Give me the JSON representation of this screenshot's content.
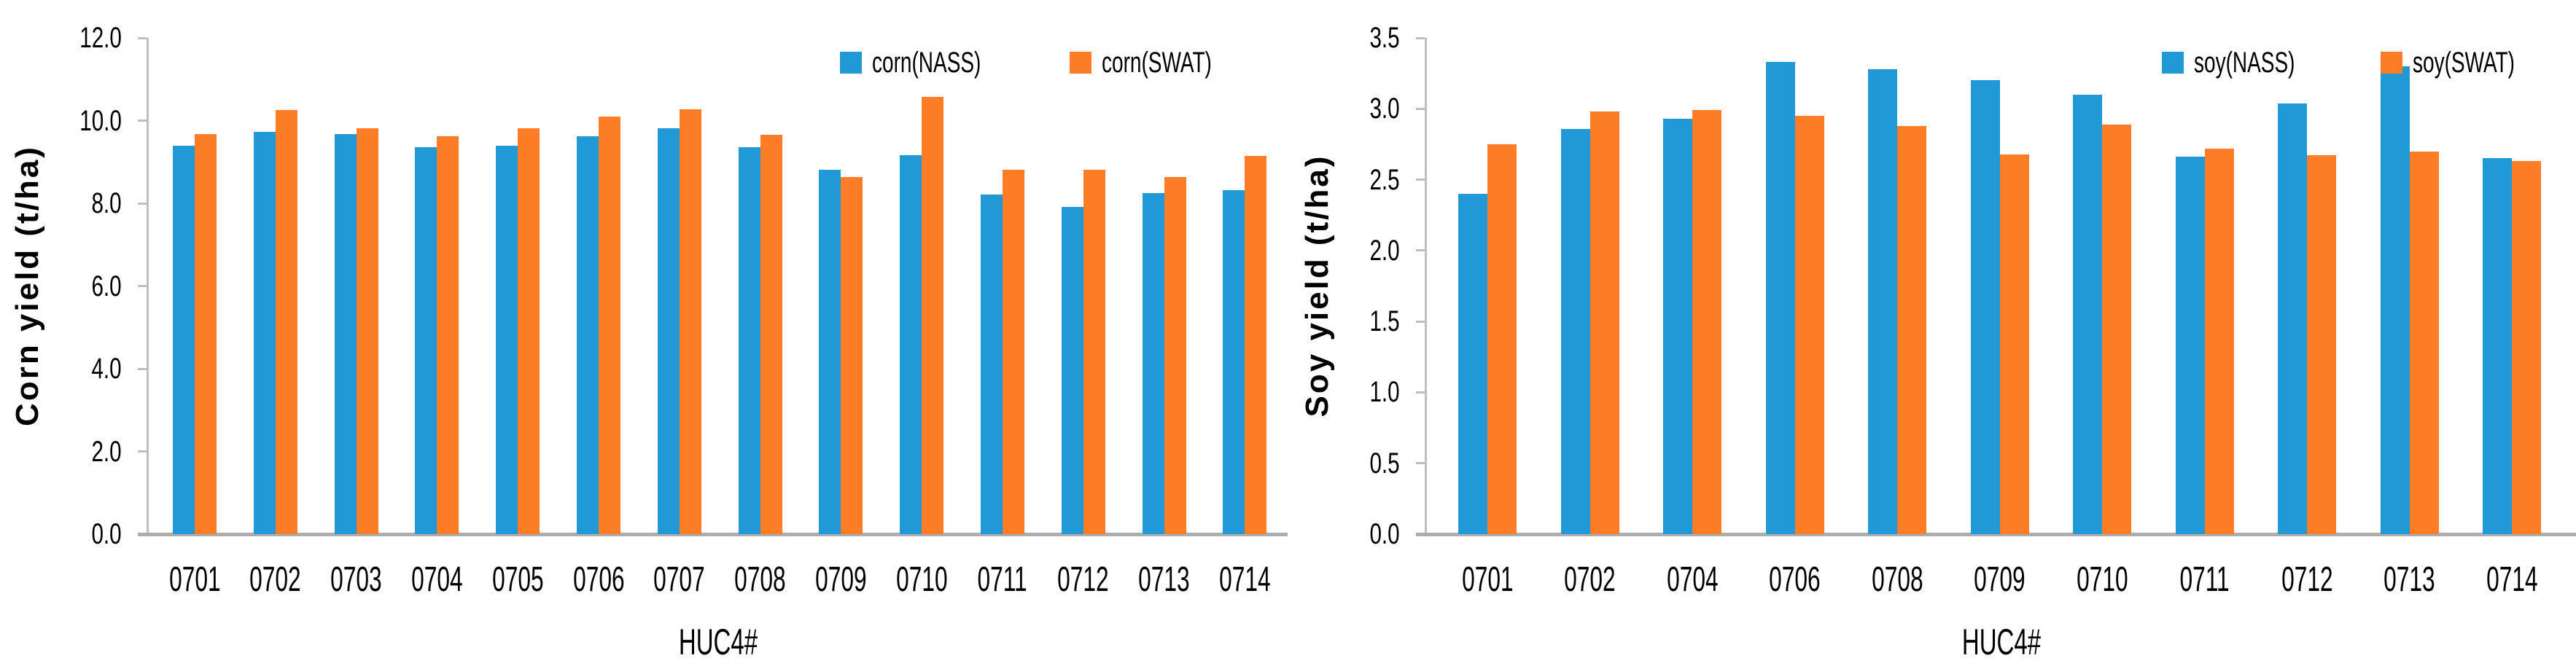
{
  "figure": {
    "background": "#ffffff"
  },
  "colors": {
    "nass_blue": "#2199d6",
    "swat_orange": "#fc7d26",
    "axis_gray": "#bfbfbf",
    "baseline_gray": "#adadad",
    "text": "#000000"
  },
  "chart_data": [
    {
      "id": "corn",
      "type": "bar",
      "title": "",
      "xlabel": "HUC4#",
      "ylabel": "Corn yield (t/ha)",
      "ylim": [
        0,
        12
      ],
      "ytick_step": 2,
      "ytick_labels": [
        "0.0",
        "2.0",
        "4.0",
        "6.0",
        "8.0",
        "10.0",
        "12.0"
      ],
      "grid": false,
      "legend_position": "top-right",
      "categories": [
        "0701",
        "0702",
        "0703",
        "0704",
        "0705",
        "0706",
        "0707",
        "0708",
        "0709",
        "0710",
        "0711",
        "0712",
        "0713",
        "0714"
      ],
      "series": [
        {
          "name": "corn(NASS)",
          "color_key": "nass_blue",
          "values": [
            9.4,
            9.72,
            9.68,
            9.36,
            9.39,
            9.62,
            9.82,
            9.36,
            8.81,
            9.16,
            8.21,
            7.91,
            8.24,
            8.31
          ]
        },
        {
          "name": "corn(SWAT)",
          "color_key": "swat_orange",
          "values": [
            9.68,
            10.25,
            9.82,
            9.62,
            9.82,
            10.1,
            10.28,
            9.65,
            8.64,
            10.57,
            8.81,
            8.81,
            8.64,
            9.14
          ]
        }
      ]
    },
    {
      "id": "soy",
      "type": "bar",
      "title": "",
      "xlabel": "HUC4#",
      "ylabel": "Soy yield (t/ha)",
      "ylim": [
        0,
        3.5
      ],
      "ytick_step": 0.5,
      "ytick_labels": [
        "0.0",
        "0.5",
        "1.0",
        "1.5",
        "2.0",
        "2.5",
        "3.0",
        "3.5"
      ],
      "grid": false,
      "legend_position": "top-right",
      "categories": [
        "0701",
        "0702",
        "0704",
        "0706",
        "0708",
        "0709",
        "0710",
        "0711",
        "0712",
        "0713",
        "0714"
      ],
      "series": [
        {
          "name": "soy(NASS)",
          "color_key": "nass_blue",
          "values": [
            2.4,
            2.86,
            2.93,
            3.33,
            3.28,
            3.2,
            3.1,
            2.66,
            3.04,
            3.3,
            2.65
          ]
        },
        {
          "name": "soy(SWAT)",
          "color_key": "swat_orange",
          "values": [
            2.75,
            2.98,
            2.99,
            2.95,
            2.88,
            2.68,
            2.89,
            2.72,
            2.67,
            2.7,
            2.63
          ]
        }
      ]
    }
  ]
}
